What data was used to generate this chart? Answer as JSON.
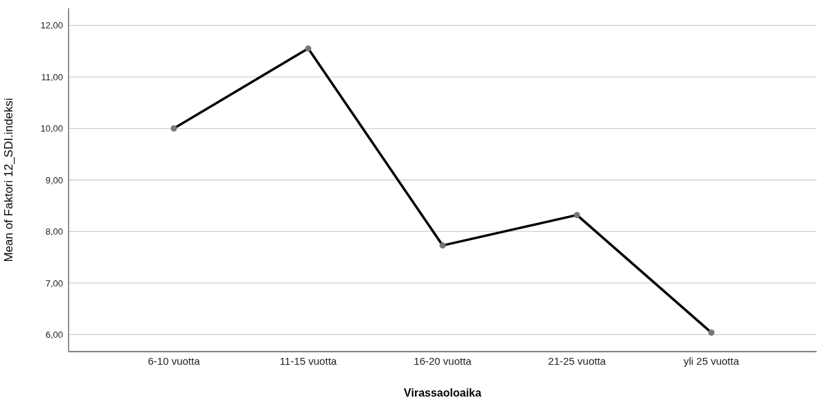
{
  "chart_data": {
    "type": "line",
    "xlabel": "Virassaoloaika",
    "ylabel": "Mean of Faktori 12_SDI.indeksi",
    "categories": [
      "6-10 vuotta",
      "11-15 vuotta",
      "16-20 vuotta",
      "21-25 vuotta",
      "yli 25 vuotta"
    ],
    "series": [
      {
        "color": "#000000",
        "values": [
          10.0,
          11.55,
          7.73,
          8.32,
          6.04
        ]
      }
    ],
    "ylim": [
      5.67,
      12.33
    ],
    "yticks": [
      {
        "value": 6,
        "label": "6,00"
      },
      {
        "value": 7,
        "label": "7,00"
      },
      {
        "value": 8,
        "label": "8,00"
      },
      {
        "value": 9,
        "label": "9,00"
      },
      {
        "value": 10,
        "label": "10,00"
      },
      {
        "value": 11,
        "label": "11,00"
      },
      {
        "value": 12,
        "label": "12,00"
      }
    ],
    "grid": "y",
    "marker": "circle",
    "line_style": "solid"
  }
}
